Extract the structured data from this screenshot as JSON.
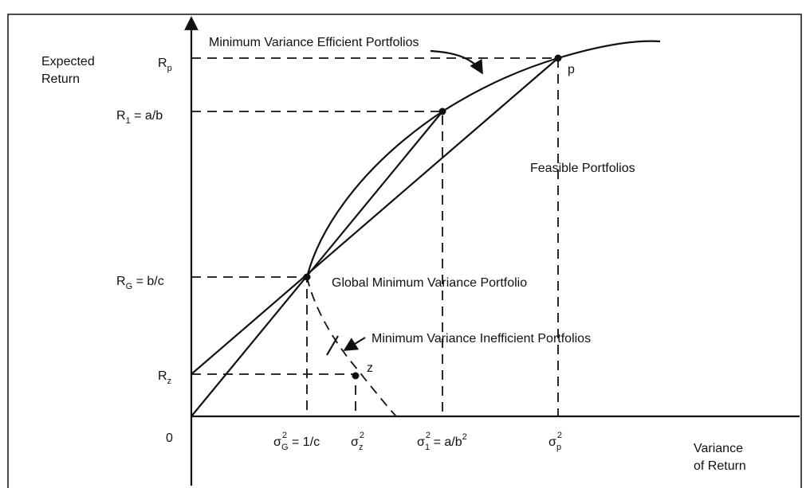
{
  "y_axis_label": [
    "Expected",
    "Return"
  ],
  "x_axis_label": [
    "Variance",
    "of Return"
  ],
  "annotations": {
    "efficient": "Minimum Variance Efficient Portfolios",
    "feasible": "Feasible Portfolios",
    "global": "Global Minimum Variance Portfolio",
    "inefficient": "Minimum Variance Inefficient Portfolios"
  },
  "points": {
    "p": "p",
    "z": "z"
  },
  "y_labels": [
    {
      "base": "R",
      "sub": "p"
    },
    {
      "base": "R",
      "sub": "1",
      "rest": " = a/b"
    },
    {
      "base": "R",
      "sub": "G",
      "rest": " = b/c"
    },
    {
      "base": "R",
      "sub": "z"
    }
  ],
  "origin": "0",
  "x_labels": [
    {
      "base": "σ",
      "sup": "2",
      "sub": "G",
      "rest": " = 1/c"
    },
    {
      "base": "σ",
      "sup": "2",
      "sub": "z"
    },
    {
      "base": "σ",
      "sup": "2",
      "sub": "1",
      "rest": " = a/b",
      "rest_sup": "2"
    },
    {
      "base": "σ",
      "sup": "2",
      "sub": "p"
    }
  ]
}
